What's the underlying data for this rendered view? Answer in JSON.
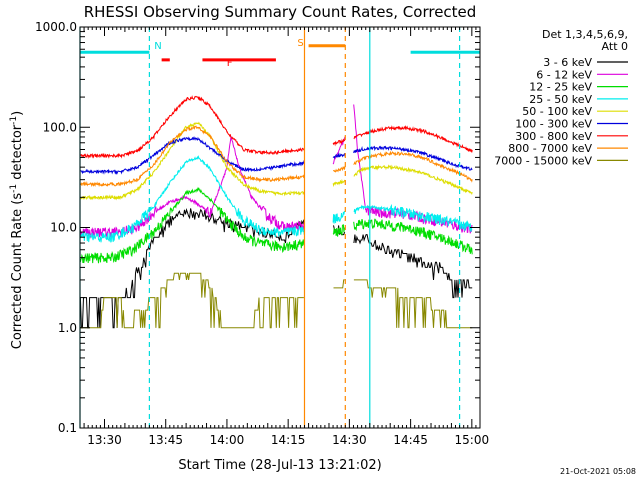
{
  "chart_data": {
    "type": "line",
    "title": "RHESSI Observing Summary Count Rates, Corrected",
    "xlabel": "Start Time (28-Jul-13 13:21:02)",
    "ylabel_main": "Corrected Count Rate (s",
    "ylabel_sup1": "-1",
    "ylabel_mid": " detector",
    "ylabel_sup2": "-1",
    "ylabel_end": ")",
    "x_start_minutes": 804,
    "x_end_minutes": 902,
    "xlim": [
      "13:24",
      "15:02"
    ],
    "ylim": [
      0.1,
      1000
    ],
    "yscale": "log",
    "y_ticks": [
      "0.1",
      "1.0",
      "10.0",
      "100.0",
      "1000.0"
    ],
    "y_tick_values": [
      0.1,
      1,
      10,
      100,
      1000
    ],
    "x_ticks": [
      "13:30",
      "13:45",
      "14:00",
      "14:15",
      "14:30",
      "14:45",
      "15:00"
    ],
    "x_tick_minutes": [
      810,
      825,
      840,
      855,
      870,
      885,
      900
    ],
    "legend_header": [
      "Det 1,3,4,5,6,9,",
      "Att 0"
    ],
    "legend_placement": "right",
    "timestamp": "21-Oct-2021 05:08",
    "data_gap": [
      [
        859,
        866
      ],
      [
        869,
        871
      ]
    ],
    "series": [
      {
        "name": "3 - 6 keV",
        "color": "#000000",
        "x": [
          804,
          815,
          818,
          821,
          824,
          828,
          831,
          834,
          838,
          854,
          859,
          871,
          873,
          876,
          879,
          882,
          885,
          888,
          891,
          894,
          898,
          900
        ],
        "y": [
          2.0,
          2.0,
          3.5,
          6.0,
          10.0,
          13.0,
          14.0,
          14.0,
          12.0,
          8.0,
          11.0,
          9.0,
          8.0,
          7.0,
          6.0,
          5.5,
          5.0,
          4.5,
          4.0,
          3.5,
          3.0,
          2.5
        ]
      },
      {
        "name": "6 - 12 keV",
        "color": "#dd00dd",
        "x": [
          804,
          814,
          818,
          822,
          826,
          830,
          832,
          836,
          840,
          841,
          843,
          846,
          850,
          854,
          859,
          869,
          870,
          871,
          872,
          874,
          878,
          882,
          886,
          890,
          894,
          898,
          900
        ],
        "y": [
          9.0,
          9.0,
          10.0,
          14.0,
          18.0,
          20.0,
          18.0,
          14.0,
          40.0,
          80.0,
          40.0,
          20.0,
          13.0,
          10.0,
          10.5,
          80.0,
          280.0,
          180.0,
          60.0,
          15.0,
          14.0,
          14.0,
          13.0,
          12.0,
          11.0,
          10.0,
          9.5
        ]
      },
      {
        "name": "12 - 25 keV",
        "color": "#00dd00",
        "x": [
          804,
          812,
          817,
          822,
          826,
          830,
          833,
          836,
          840,
          844,
          848,
          852,
          855,
          859,
          870,
          873,
          876,
          880,
          884,
          888,
          892,
          896,
          900
        ],
        "y": [
          5.0,
          5.0,
          6.0,
          9.0,
          14.0,
          22.0,
          24.0,
          19.0,
          12.0,
          8.0,
          7.0,
          6.5,
          6.5,
          7.0,
          10.0,
          11.0,
          11.0,
          10.5,
          10.0,
          9.0,
          8.0,
          7.0,
          6.0
        ]
      },
      {
        "name": "25 - 50 keV",
        "color": "#00eeee",
        "x": [
          804,
          812,
          817,
          822,
          826,
          830,
          833,
          836,
          840,
          844,
          848,
          852,
          855,
          859,
          870,
          873,
          876,
          880,
          884,
          888,
          892,
          896,
          900
        ],
        "y": [
          8.0,
          8.0,
          10.0,
          16.0,
          28.0,
          45.0,
          50.0,
          38.0,
          20.0,
          12.0,
          9.5,
          9.0,
          9.0,
          9.5,
          14.0,
          16.0,
          16.0,
          15.0,
          14.0,
          13.0,
          12.0,
          11.0,
          10.0
        ]
      },
      {
        "name": "50 - 100 keV",
        "color": "#dddd00",
        "x": [
          804,
          814,
          818,
          822,
          826,
          830,
          833,
          836,
          840,
          844,
          848,
          852,
          855,
          859,
          870,
          873,
          876,
          880,
          884,
          888,
          892,
          896,
          900
        ],
        "y": [
          20.0,
          20.0,
          24.0,
          35.0,
          60.0,
          100.0,
          110.0,
          80.0,
          40.0,
          27.0,
          23.0,
          22.0,
          22.0,
          22.0,
          30.0,
          38.0,
          40.0,
          40.0,
          38.0,
          35.0,
          30.0,
          26.0,
          22.0
        ]
      },
      {
        "name": "100 - 300 keV",
        "color": "#0000dd",
        "x": [
          804,
          814,
          818,
          822,
          826,
          830,
          833,
          836,
          840,
          844,
          848,
          852,
          855,
          859,
          870,
          873,
          876,
          880,
          884,
          888,
          892,
          896,
          900
        ],
        "y": [
          36.0,
          36.0,
          40.0,
          52.0,
          70.0,
          78.0,
          76.0,
          62.0,
          46.0,
          38.0,
          38.0,
          40.0,
          42.0,
          44.0,
          55.0,
          60.0,
          62.0,
          62.0,
          60.0,
          55.0,
          48.0,
          42.0,
          38.0
        ]
      },
      {
        "name": "300 - 800 keV",
        "color": "#ff0000",
        "x": [
          804,
          814,
          818,
          822,
          826,
          830,
          833,
          836,
          840,
          844,
          848,
          852,
          855,
          859,
          870,
          873,
          876,
          880,
          884,
          888,
          892,
          896,
          900
        ],
        "y": [
          52.0,
          52.0,
          58.0,
          80.0,
          130.0,
          190.0,
          200.0,
          160.0,
          90.0,
          60.0,
          56.0,
          56.0,
          58.0,
          60.0,
          75.0,
          85.0,
          92.0,
          98.0,
          98.0,
          92.0,
          80.0,
          68.0,
          58.0
        ]
      },
      {
        "name": "800 - 7000 keV",
        "color": "#ff8800",
        "x": [
          804,
          814,
          818,
          822,
          826,
          830,
          833,
          836,
          840,
          844,
          848,
          852,
          855,
          859,
          870,
          873,
          876,
          880,
          884,
          888,
          892,
          896,
          900
        ],
        "y": [
          27.0,
          27.0,
          30.0,
          42.0,
          70.0,
          95.0,
          100.0,
          80.0,
          45.0,
          32.0,
          30.0,
          30.0,
          31.0,
          32.0,
          40.0,
          48.0,
          52.0,
          55.0,
          54.0,
          50.0,
          42.0,
          36.0,
          30.0
        ]
      },
      {
        "name": "7000 - 15000 keV",
        "color": "#888800",
        "x": [
          804,
          809,
          810,
          814,
          815,
          822,
          826,
          828,
          833,
          835,
          837,
          839,
          840,
          846,
          848,
          855,
          859,
          871,
          873,
          876,
          880,
          884,
          888,
          892,
          896,
          900
        ],
        "y": [
          1.0,
          1.0,
          2.0,
          2.0,
          1.0,
          2.0,
          3.0,
          3.5,
          3.5,
          3.0,
          2.0,
          1.0,
          1.0,
          1.0,
          2.0,
          2.0,
          2.0,
          3.0,
          3.0,
          2.5,
          2.5,
          2.0,
          2.0,
          1.5,
          1.0,
          1.0
        ]
      }
    ],
    "flags": [
      {
        "label": "N",
        "color": "#00dddd",
        "segments": [
          [
            804,
            821
          ],
          [
            885,
            902
          ]
        ],
        "y": 560
      },
      {
        "label": "F",
        "color": "#ff0000",
        "segments": [
          [
            824,
            826
          ],
          [
            834,
            852
          ]
        ],
        "y": 470
      },
      {
        "label": "S",
        "color": "#ff8800",
        "segments": [
          [
            860,
            869
          ]
        ],
        "y": 650
      }
    ],
    "vlines": [
      {
        "x": 804,
        "color": "#00dddd",
        "style": "solid"
      },
      {
        "x": 821,
        "color": "#00dddd",
        "style": "dashed"
      },
      {
        "x": 859,
        "color": "#ff8800",
        "style": "solid"
      },
      {
        "x": 869,
        "color": "#ff8800",
        "style": "dashed"
      },
      {
        "x": 875,
        "color": "#00dddd",
        "style": "solid"
      },
      {
        "x": 897,
        "color": "#00dddd",
        "style": "dashed"
      }
    ]
  }
}
